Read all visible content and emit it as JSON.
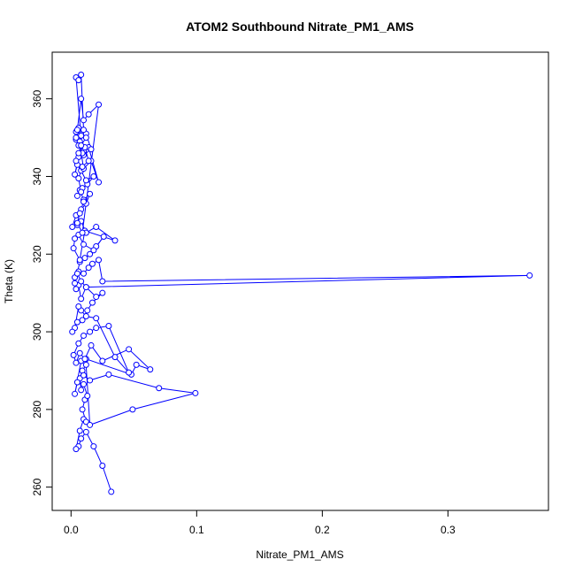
{
  "chart_data": {
    "type": "line",
    "title": "ATOM2 Southbound Nitrate_PM1_AMS",
    "xlabel": "Nitrate_PM1_AMS",
    "ylabel": "Theta (K)",
    "xlim": [
      -0.015,
      0.38
    ],
    "ylim": [
      254,
      372
    ],
    "xticks": [
      0.0,
      0.1,
      0.2,
      0.3
    ],
    "xtick_labels": [
      "0.0",
      "0.1",
      "0.2",
      "0.3"
    ],
    "yticks": [
      260,
      280,
      300,
      320,
      340,
      360
    ],
    "ytick_labels": [
      "260",
      "280",
      "300",
      "320",
      "340",
      "360"
    ],
    "grid": false,
    "legend": "none",
    "series": [
      {
        "color": "#0000ff",
        "marker": "open-circle",
        "x": [
          0.032,
          0.025,
          0.018,
          0.012,
          0.008,
          0.006,
          0.004,
          0.007,
          0.01,
          0.012,
          0.009,
          0.011,
          0.013,
          0.01,
          0.008,
          0.007,
          0.009,
          0.012,
          0.015,
          0.049,
          0.099,
          0.07,
          0.03,
          0.015,
          0.01,
          0.005,
          0.003,
          0.008,
          0.012,
          0.048,
          0.052,
          0.063,
          0.046,
          0.025,
          0.016,
          0.011,
          0.007,
          0.004,
          0.002,
          0.006,
          0.01,
          0.015,
          0.02,
          0.03,
          0.046,
          0.035,
          0.02,
          0.012,
          0.008,
          0.006,
          0.003,
          0.001,
          0.005,
          0.009,
          0.013,
          0.017,
          0.025,
          0.02,
          0.012,
          0.008,
          0.006,
          0.004,
          0.003,
          0.006,
          0.01,
          0.014,
          0.017,
          0.022,
          0.025,
          0.365,
          0.012,
          0.008,
          0.005,
          0.003,
          0.007,
          0.011,
          0.015,
          0.02,
          0.026,
          0.018,
          0.01,
          0.006,
          0.003,
          0.002,
          0.007,
          0.011,
          0.035,
          0.02,
          0.012,
          0.008,
          0.005,
          0.001,
          0.004,
          0.008,
          0.012,
          0.015,
          0.01,
          0.007,
          0.005,
          0.009,
          0.013,
          0.018,
          0.012,
          0.008,
          0.005,
          0.003,
          0.006,
          0.01,
          0.014,
          0.022,
          0.016,
          0.01,
          0.007,
          0.004,
          0.008,
          0.012,
          0.016,
          0.01,
          0.006,
          0.004,
          0.007,
          0.011,
          0.014,
          0.009,
          0.006,
          0.008,
          0.01,
          0.007,
          0.005,
          0.009,
          0.022,
          0.014,
          0.01,
          0.008,
          0.005,
          0.004,
          0.006,
          0.009,
          0.004,
          0.006,
          0.008,
          0.01,
          0.012,
          0.008,
          0.006,
          0.004
        ],
        "y": [
          258.8,
          265.5,
          270.5,
          274.2,
          272.5,
          270.5,
          269.8,
          274.5,
          277.5,
          276.8,
          280.0,
          282.5,
          283.5,
          286.5,
          285.0,
          288.0,
          290.0,
          291.5,
          276.0,
          280.0,
          284.2,
          285.5,
          289.0,
          287.5,
          288.8,
          287.0,
          284.0,
          292.5,
          293.0,
          289.0,
          291.5,
          290.3,
          295.5,
          292.5,
          296.5,
          293.0,
          294.5,
          292.0,
          294.0,
          297.0,
          299.0,
          300.0,
          301.0,
          301.5,
          289.5,
          293.5,
          303.5,
          304.0,
          305.5,
          306.5,
          301.0,
          300.0,
          302.5,
          303.0,
          305.5,
          307.5,
          310.0,
          309.0,
          311.5,
          308.5,
          312.0,
          311.0,
          314.0,
          315.5,
          315.0,
          316.5,
          317.5,
          318.5,
          313.0,
          314.5,
          311.5,
          313.0,
          315.0,
          312.5,
          318.0,
          319.0,
          320.0,
          322.0,
          324.5,
          321.0,
          322.5,
          325.0,
          324.0,
          321.5,
          318.5,
          326.0,
          323.5,
          327.0,
          325.5,
          328.5,
          327.5,
          327.0,
          330.0,
          331.5,
          333.0,
          335.5,
          334.0,
          336.5,
          335.0,
          337.0,
          338.0,
          340.0,
          339.0,
          341.5,
          343.0,
          340.5,
          345.0,
          346.5,
          347.5,
          338.5,
          344.0,
          342.0,
          348.5,
          349.5,
          350.5,
          351.0,
          347.0,
          345.5,
          352.5,
          351.5,
          349.0,
          347.5,
          344.0,
          342.5,
          339.5,
          336.0,
          333.5,
          330.5,
          328.0,
          325.5,
          358.5,
          356.0,
          354.5,
          360.0,
          352.0,
          350.0,
          348.0,
          346.0,
          365.5,
          364.8,
          366.2,
          352.0,
          350.0,
          348.0,
          346.0,
          344.0
        ]
      }
    ]
  }
}
